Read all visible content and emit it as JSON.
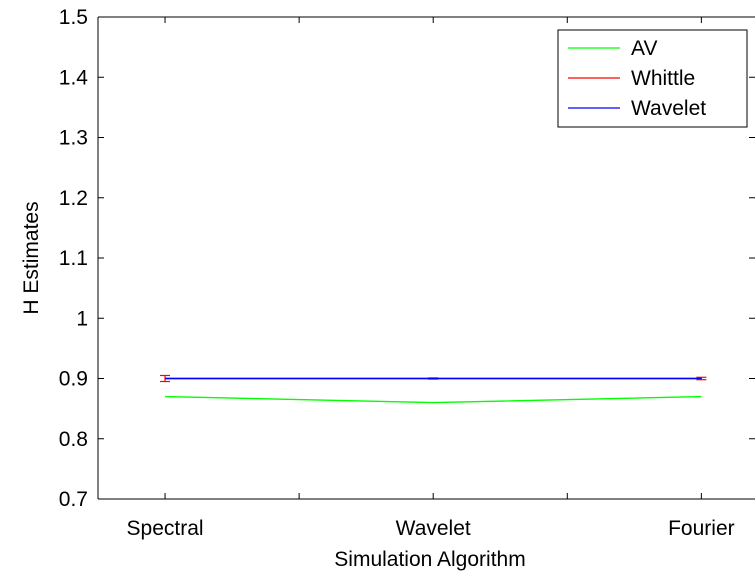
{
  "chart_data": {
    "type": "line",
    "title": "",
    "xlabel": "Simulation Algorithm",
    "ylabel": "H Estimates",
    "categories": [
      "Spectral",
      "Wavelet",
      "Fourier"
    ],
    "xlim": [
      0.75,
      3.2
    ],
    "ylim": [
      0.7,
      1.5
    ],
    "yticks": [
      0.7,
      0.8,
      0.9,
      1,
      1.1,
      1.2,
      1.3,
      1.4,
      1.5
    ],
    "ytick_labels": [
      "0.7",
      "0.8",
      "0.9",
      "1",
      "1.1",
      "1.2",
      "1.3",
      "1.4",
      "1.5"
    ],
    "xticks_minor": [
      1.5,
      2.5
    ],
    "grid": false,
    "legend_position": "top-right",
    "series": [
      {
        "name": "AV",
        "color": "#00ff00",
        "values": [
          0.87,
          0.86,
          0.87
        ]
      },
      {
        "name": "Whittle",
        "color": "#ff0000",
        "values": [
          0.9,
          0.9,
          0.9
        ],
        "error": [
          0.005,
          0.001,
          0.002
        ]
      },
      {
        "name": "Wavelet",
        "color": "#0000ff",
        "values": [
          0.9,
          0.9,
          0.9
        ]
      }
    ]
  }
}
